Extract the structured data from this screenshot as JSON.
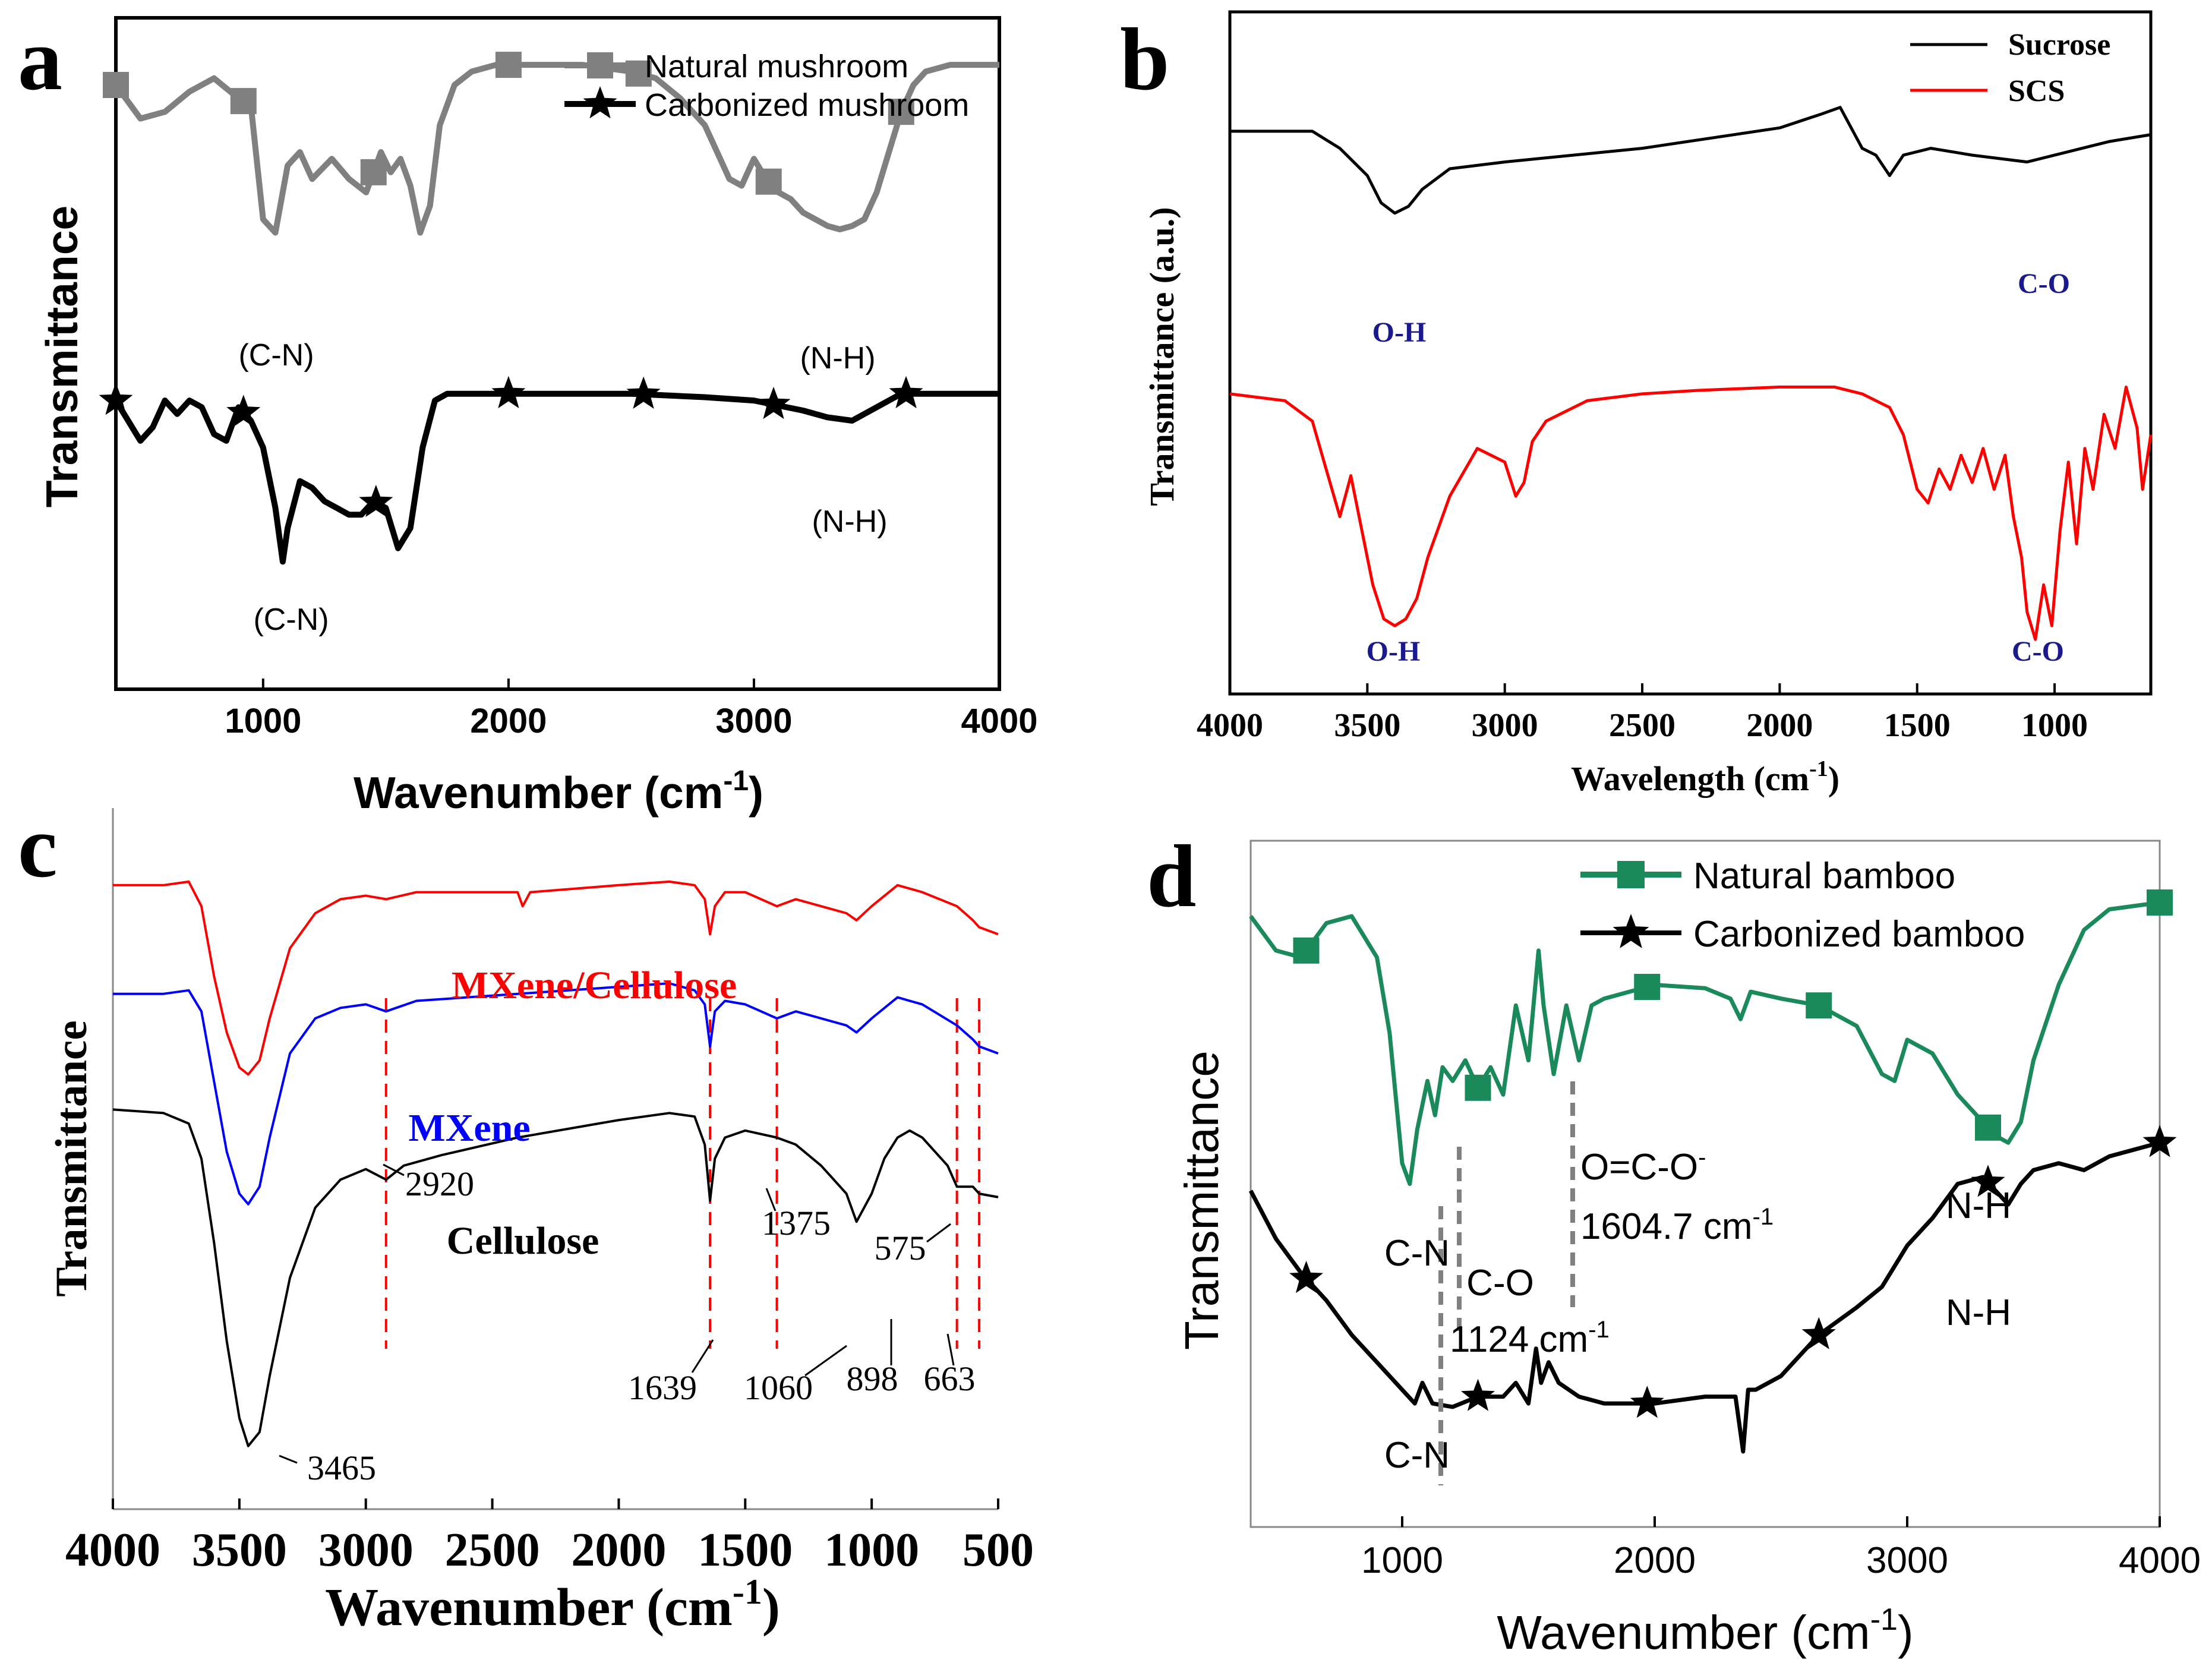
{
  "chart_data": [
    {
      "panel": "a",
      "type": "line",
      "title": "",
      "xlabel": "Wavenumber (cm",
      "xlabel_sup": "-1",
      "xlabel_end": ")",
      "ylabel": "Transmittance",
      "xlim": [
        400,
        4000
      ],
      "ylim": [
        0,
        10
      ],
      "xticks": [
        1000,
        2000,
        3000,
        4000
      ],
      "grid": false,
      "legend_position": "top-right",
      "series": [
        {
          "name": "Natural mushroom",
          "color": "#808080",
          "marker": "square",
          "x": [
            400,
            500,
            600,
            700,
            800,
            900,
            950,
            1000,
            1050,
            1100,
            1150,
            1200,
            1280,
            1350,
            1420,
            1480,
            1520,
            1560,
            1600,
            1640,
            1680,
            1720,
            1780,
            1850,
            1950,
            2100,
            2300,
            2500,
            2600,
            2700,
            2800,
            2850,
            2900,
            2950,
            3000,
            3050,
            3100,
            3150,
            3200,
            3300,
            3350,
            3400,
            3450,
            3500,
            3550,
            3600,
            3650,
            3700,
            3800,
            4000
          ],
          "y": [
            9.0,
            8.5,
            8.6,
            8.9,
            9.1,
            8.8,
            8.7,
            7.0,
            6.8,
            7.8,
            8.0,
            7.6,
            7.9,
            7.6,
            7.4,
            8.0,
            7.7,
            7.9,
            7.5,
            6.8,
            7.2,
            8.4,
            9.0,
            9.2,
            9.3,
            9.3,
            9.3,
            9.2,
            9.1,
            8.8,
            8.4,
            8.0,
            7.6,
            7.5,
            7.9,
            7.6,
            7.4,
            7.3,
            7.1,
            6.9,
            6.85,
            6.9,
            7.0,
            7.4,
            8.0,
            8.6,
            9.0,
            9.2,
            9.3,
            9.3
          ],
          "marker_x": [
            400,
            920,
            1450,
            2000,
            2530,
            3060,
            3600
          ]
        },
        {
          "name": "Carbonized mushroom",
          "color": "#000000",
          "marker": "star",
          "x": [
            400,
            500,
            550,
            600,
            650,
            700,
            750,
            800,
            850,
            900,
            950,
            1000,
            1050,
            1080,
            1100,
            1150,
            1200,
            1250,
            1300,
            1350,
            1400,
            1450,
            1500,
            1550,
            1600,
            1650,
            1700,
            1750,
            2000,
            2500,
            2800,
            3000,
            3200,
            3300,
            3400,
            3500,
            3600,
            4000
          ],
          "y": [
            4.3,
            3.7,
            3.9,
            4.3,
            4.1,
            4.3,
            4.2,
            3.8,
            3.7,
            4.2,
            4.0,
            3.6,
            2.7,
            1.9,
            2.4,
            3.1,
            3.0,
            2.8,
            2.7,
            2.6,
            2.6,
            2.8,
            2.7,
            2.1,
            2.4,
            3.6,
            4.3,
            4.4,
            4.4,
            4.4,
            4.35,
            4.3,
            4.15,
            4.05,
            4.0,
            4.2,
            4.4,
            4.4
          ],
          "marker_x": [
            400,
            920,
            1460,
            2000,
            2550,
            3080,
            3620
          ]
        }
      ],
      "annotations": [
        "(C-N)",
        "(N-H)",
        "(C-N)",
        "(N-H)"
      ]
    },
    {
      "panel": "b",
      "type": "line",
      "title": "",
      "xlabel": "Wavelength (cm",
      "xlabel_sup": "-1",
      "xlabel_end": ")",
      "ylabel": "Transmittance (a.u.)",
      "xlim": [
        4000,
        650
      ],
      "ylim": [
        0,
        10
      ],
      "xticks": [
        4000,
        3500,
        3000,
        2500,
        2000,
        1500,
        1000
      ],
      "grid": false,
      "legend_position": "top-right",
      "series": [
        {
          "name": "Sucrose",
          "color": "#000000",
          "x": [
            4000,
            3700,
            3600,
            3500,
            3450,
            3400,
            3350,
            3300,
            3200,
            3000,
            2500,
            2000,
            1850,
            1780,
            1700,
            1650,
            1600,
            1550,
            1450,
            1300,
            1100,
            1000,
            900,
            800,
            650
          ],
          "y": [
            8.25,
            8.25,
            8.0,
            7.6,
            7.2,
            7.05,
            7.15,
            7.4,
            7.7,
            7.8,
            8.0,
            8.3,
            8.5,
            8.6,
            8.0,
            7.9,
            7.6,
            7.9,
            8.0,
            7.9,
            7.8,
            7.9,
            8.0,
            8.1,
            8.2
          ]
        },
        {
          "name": "SCS",
          "color": "#ff0000",
          "x": [
            4000,
            3800,
            3700,
            3650,
            3600,
            3560,
            3520,
            3480,
            3440,
            3400,
            3360,
            3320,
            3280,
            3200,
            3100,
            3000,
            2960,
            2930,
            2900,
            2850,
            2700,
            2500,
            2300,
            2000,
            1800,
            1700,
            1600,
            1550,
            1500,
            1460,
            1420,
            1380,
            1340,
            1300,
            1260,
            1220,
            1180,
            1150,
            1120,
            1100,
            1070,
            1040,
            1010,
            980,
            950,
            920,
            890,
            860,
            820,
            780,
            740,
            700,
            680,
            650
          ],
          "y": [
            4.4,
            4.3,
            4.0,
            3.3,
            2.6,
            3.2,
            2.4,
            1.6,
            1.1,
            1.0,
            1.1,
            1.4,
            2.0,
            2.9,
            3.6,
            3.4,
            2.9,
            3.1,
            3.7,
            4.0,
            4.3,
            4.4,
            4.45,
            4.5,
            4.5,
            4.4,
            4.2,
            3.8,
            3.0,
            2.8,
            3.3,
            3.0,
            3.5,
            3.1,
            3.6,
            3.0,
            3.5,
            2.6,
            2.0,
            1.2,
            0.8,
            1.6,
            1.0,
            2.4,
            3.4,
            2.2,
            3.6,
            3.0,
            4.1,
            3.6,
            4.5,
            3.9,
            3.0,
            3.8
          ]
        }
      ],
      "annotations": [
        "O-H",
        "C-O",
        "O-H",
        "C-O"
      ]
    },
    {
      "panel": "c",
      "type": "line",
      "title": "",
      "xlabel": "Wavenumber (cm",
      "xlabel_sup": "-1",
      "xlabel_end": ")",
      "ylabel": "Transmittance",
      "xlim": [
        4000,
        500
      ],
      "ylim": [
        0,
        10
      ],
      "xticks": [
        4000,
        3500,
        3000,
        2500,
        2000,
        1500,
        1000,
        500
      ],
      "grid": false,
      "legend_position": "inline",
      "series": [
        {
          "name": "MXene/Cellulose",
          "color": "#ff0000",
          "x": [
            4000,
            3800,
            3700,
            3650,
            3600,
            3550,
            3500,
            3465,
            3420,
            3380,
            3300,
            3200,
            3100,
            3000,
            2920,
            2800,
            2400,
            2380,
            2350,
            2000,
            1800,
            1700,
            1660,
            1639,
            1620,
            1580,
            1500,
            1375,
            1300,
            1100,
            1060,
            1000,
            898,
            800,
            663,
            600,
            575,
            500
          ],
          "y": [
            8.9,
            8.9,
            8.95,
            8.6,
            7.6,
            6.8,
            6.3,
            6.2,
            6.4,
            7.0,
            8.0,
            8.5,
            8.7,
            8.75,
            8.7,
            8.8,
            8.8,
            8.6,
            8.8,
            8.9,
            8.95,
            8.9,
            8.7,
            8.2,
            8.6,
            8.8,
            8.8,
            8.6,
            8.7,
            8.5,
            8.4,
            8.6,
            8.9,
            8.8,
            8.6,
            8.4,
            8.3,
            8.2
          ]
        },
        {
          "name": "MXene",
          "color": "#0000ff",
          "x": [
            4000,
            3800,
            3700,
            3650,
            3600,
            3550,
            3500,
            3465,
            3420,
            3380,
            3300,
            3200,
            3100,
            3000,
            2920,
            2800,
            2400,
            2000,
            1800,
            1700,
            1660,
            1639,
            1620,
            1580,
            1500,
            1375,
            1300,
            1100,
            1060,
            1000,
            898,
            800,
            663,
            600,
            575,
            500
          ],
          "y": [
            7.35,
            7.35,
            7.4,
            7.1,
            6.1,
            5.1,
            4.5,
            4.35,
            4.6,
            5.3,
            6.5,
            7.0,
            7.15,
            7.2,
            7.1,
            7.25,
            7.35,
            7.45,
            7.5,
            7.4,
            7.2,
            6.6,
            7.1,
            7.25,
            7.2,
            7.0,
            7.1,
            6.9,
            6.8,
            7.0,
            7.3,
            7.2,
            6.9,
            6.7,
            6.6,
            6.5
          ]
        },
        {
          "name": "Cellulose",
          "color": "#000000",
          "x": [
            4000,
            3800,
            3700,
            3650,
            3600,
            3550,
            3500,
            3465,
            3420,
            3380,
            3300,
            3200,
            3100,
            3000,
            2920,
            2850,
            2700,
            2400,
            2000,
            1800,
            1700,
            1660,
            1639,
            1620,
            1580,
            1500,
            1375,
            1300,
            1200,
            1100,
            1060,
            1000,
            950,
            898,
            850,
            800,
            700,
            663,
            600,
            575,
            500
          ],
          "y": [
            5.7,
            5.65,
            5.5,
            5.0,
            3.8,
            2.4,
            1.3,
            0.9,
            1.1,
            1.9,
            3.3,
            4.3,
            4.7,
            4.85,
            4.7,
            4.9,
            5.05,
            5.3,
            5.55,
            5.65,
            5.6,
            5.2,
            4.4,
            5.0,
            5.3,
            5.4,
            5.3,
            5.2,
            4.9,
            4.5,
            4.1,
            4.5,
            5.0,
            5.3,
            5.4,
            5.3,
            4.9,
            4.6,
            4.6,
            4.5,
            4.45
          ]
        }
      ],
      "markers_dashed": [
        2920,
        1639,
        1375,
        663,
        575
      ],
      "annotations": [
        "2920",
        "1375",
        "575",
        "1639",
        "1060",
        "898",
        "663",
        "3465"
      ]
    },
    {
      "panel": "d",
      "type": "line",
      "title": "",
      "xlabel": "Wavenumber (cm",
      "xlabel_sup": "-1",
      "xlabel_end": ")",
      "ylabel": "Transmittance",
      "xlim": [
        400,
        4000
      ],
      "ylim": [
        0,
        10
      ],
      "xticks": [
        1000,
        2000,
        3000,
        4000
      ],
      "grid": false,
      "legend_position": "top-right",
      "series": [
        {
          "name": "Natural bamboo",
          "color": "#1b8a5a",
          "marker": "square",
          "x": [
            400,
            500,
            600,
            700,
            800,
            900,
            950,
            1000,
            1030,
            1060,
            1100,
            1130,
            1160,
            1200,
            1250,
            1300,
            1350,
            1400,
            1450,
            1500,
            1540,
            1560,
            1600,
            1650,
            1700,
            1750,
            1800,
            1900,
            2000,
            2200,
            2300,
            2340,
            2380,
            2500,
            2650,
            2800,
            2900,
            2950,
            3000,
            3100,
            3200,
            3300,
            3350,
            3400,
            3450,
            3500,
            3600,
            3700,
            3800,
            4000
          ],
          "y": [
            8.9,
            8.4,
            8.3,
            8.8,
            8.9,
            8.3,
            7.2,
            5.3,
            5.0,
            5.8,
            6.5,
            6.0,
            6.7,
            6.5,
            6.8,
            6.4,
            6.7,
            6.3,
            7.6,
            6.8,
            8.4,
            7.6,
            6.6,
            7.6,
            6.8,
            7.6,
            7.7,
            7.8,
            7.9,
            7.85,
            7.7,
            7.4,
            7.8,
            7.7,
            7.6,
            7.3,
            6.6,
            6.5,
            7.1,
            6.9,
            6.3,
            5.9,
            5.7,
            5.6,
            5.9,
            6.8,
            7.9,
            8.7,
            9.0,
            9.1
          ],
          "marker_x": [
            620,
            1300,
            1970,
            2650,
            3320,
            4000
          ]
        },
        {
          "name": "Carbonized bamboo",
          "color": "#000000",
          "marker": "star",
          "x": [
            400,
            500,
            600,
            700,
            800,
            900,
            1000,
            1050,
            1080,
            1120,
            1200,
            1300,
            1400,
            1450,
            1500,
            1530,
            1550,
            1580,
            1620,
            1700,
            1800,
            2000,
            2200,
            2320,
            2350,
            2370,
            2400,
            2500,
            2650,
            2800,
            2900,
            3000,
            3100,
            3200,
            3300,
            3350,
            3400,
            3450,
            3500,
            3600,
            3700,
            3800,
            4000
          ],
          "y": [
            4.9,
            4.2,
            3.7,
            3.3,
            2.8,
            2.4,
            2.0,
            1.8,
            2.1,
            1.8,
            1.75,
            1.9,
            1.9,
            2.1,
            1.8,
            2.6,
            2.1,
            2.4,
            2.1,
            1.9,
            1.8,
            1.8,
            1.9,
            1.9,
            1.1,
            2.0,
            2.0,
            2.2,
            2.8,
            3.2,
            3.5,
            4.1,
            4.5,
            5.0,
            5.1,
            4.9,
            4.7,
            5.0,
            5.2,
            5.3,
            5.2,
            5.4,
            5.6
          ],
          "marker_x": [
            620,
            1300,
            1970,
            2650,
            3320,
            4000
          ]
        }
      ],
      "annotations": [
        "C-N",
        "C-O",
        "1124 cm",
        "O=C-O",
        "1604.7 cm",
        "N-H",
        "C-N",
        "N-H"
      ]
    }
  ],
  "panel_labels": [
    "a",
    "b",
    "c",
    "d"
  ]
}
